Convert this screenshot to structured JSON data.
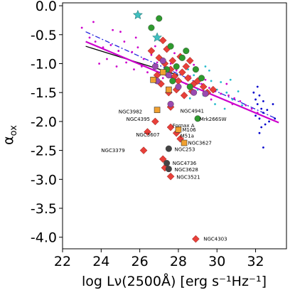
{
  "chart_data": {
    "type": "scatter",
    "xlabel": "log Lν(2500Å) [erg s⁻¹Hz⁻¹]",
    "ylabel": "αox",
    "xlim": [
      22,
      33.6
    ],
    "ylim": [
      -4.2,
      0.05
    ],
    "xticks": [
      22,
      24,
      26,
      28,
      30,
      32
    ],
    "yticks": [
      0.0,
      -0.5,
      -1.0,
      -1.5,
      -2.0,
      -2.5,
      -3.0,
      -3.5,
      -4.0
    ],
    "grid": false,
    "lines": [
      {
        "style": "solid",
        "color": "#000000",
        "points": [
          [
            23.2,
            -0.7
          ],
          [
            28.0,
            -1.2
          ]
        ]
      },
      {
        "style": "solid",
        "color": "#cc00cc",
        "points": [
          [
            23.2,
            -0.62
          ],
          [
            33.2,
            -2.02
          ]
        ]
      },
      {
        "style": "dashdot",
        "color": "#2222dd",
        "points": [
          [
            23.2,
            -0.45
          ],
          [
            33.0,
            -1.94
          ]
        ]
      }
    ],
    "series": [
      {
        "marker": "dot",
        "color": "#cc00cc",
        "points": [
          [
            23.4,
            -0.55
          ],
          [
            23.7,
            -0.62
          ],
          [
            24.1,
            -0.72
          ],
          [
            24.5,
            -0.68
          ],
          [
            24.9,
            -0.78
          ],
          [
            25.2,
            -0.62
          ],
          [
            25.6,
            -0.8
          ],
          [
            25.9,
            -0.72
          ],
          [
            26.2,
            -0.92
          ],
          [
            26.6,
            -0.85
          ],
          [
            26.9,
            -0.98
          ],
          [
            27.3,
            -1.05
          ],
          [
            27.6,
            -1.0
          ],
          [
            27.9,
            -1.12
          ],
          [
            28.2,
            -1.18
          ],
          [
            28.6,
            -1.22
          ],
          [
            28.9,
            -1.3
          ],
          [
            29.2,
            -1.35
          ],
          [
            29.6,
            -1.42
          ],
          [
            29.9,
            -1.48
          ],
          [
            30.2,
            -1.52
          ],
          [
            30.6,
            -1.55
          ],
          [
            30.9,
            -1.6
          ],
          [
            31.2,
            -1.65
          ],
          [
            31.5,
            -1.72
          ],
          [
            31.8,
            -1.78
          ],
          [
            32.1,
            -1.85
          ],
          [
            23.9,
            -1.0
          ],
          [
            24.3,
            -0.92
          ],
          [
            24.8,
            -1.05
          ],
          [
            25.3,
            -0.98
          ],
          [
            25.7,
            -1.1
          ],
          [
            26.1,
            -1.05
          ],
          [
            26.4,
            -1.15
          ],
          [
            23.0,
            -0.38
          ],
          [
            23.6,
            -0.28
          ],
          [
            25.0,
            -0.45
          ],
          [
            25.8,
            -0.55
          ],
          [
            27.2,
            -1.25
          ],
          [
            28.4,
            -1.35
          ],
          [
            29.4,
            -1.28
          ],
          [
            30.5,
            -1.35
          ],
          [
            24.6,
            -0.42
          ],
          [
            26.8,
            -0.7
          ],
          [
            27.8,
            -0.82
          ],
          [
            28.8,
            -1.02
          ],
          [
            29.7,
            -1.62
          ],
          [
            30.8,
            -1.7
          ]
        ]
      },
      {
        "marker": "dot",
        "color": "#22bbcc",
        "points": [
          [
            28.5,
            -1.1
          ],
          [
            28.8,
            -1.2
          ],
          [
            29.1,
            -1.25
          ],
          [
            29.4,
            -1.05
          ],
          [
            29.7,
            -1.3
          ],
          [
            30.0,
            -1.45
          ],
          [
            30.2,
            -1.32
          ],
          [
            30.5,
            -1.5
          ],
          [
            30.8,
            -1.62
          ],
          [
            31.1,
            -1.48
          ],
          [
            29.3,
            -1.55
          ],
          [
            29.9,
            -1.7
          ],
          [
            30.4,
            -1.78
          ],
          [
            31.3,
            -1.72
          ],
          [
            29.0,
            -1.45
          ],
          [
            30.7,
            -1.28
          ],
          [
            28.6,
            -1.6
          ],
          [
            29.6,
            -1.12
          ]
        ]
      },
      {
        "marker": "dot",
        "color": "#0000cc",
        "points": [
          [
            31.9,
            -1.5
          ],
          [
            32.0,
            -1.62
          ],
          [
            32.1,
            -1.7
          ],
          [
            32.2,
            -1.55
          ],
          [
            32.3,
            -1.78
          ],
          [
            32.4,
            -1.85
          ],
          [
            32.0,
            -1.9
          ],
          [
            32.2,
            -1.95
          ],
          [
            32.5,
            -2.05
          ],
          [
            32.3,
            -2.1
          ],
          [
            32.6,
            -1.8
          ],
          [
            32.1,
            -1.4
          ],
          [
            32.4,
            -1.65
          ],
          [
            32.7,
            -2.0
          ],
          [
            32.2,
            -2.2
          ],
          [
            32.4,
            -2.45
          ],
          [
            33.0,
            -1.95
          ],
          [
            32.9,
            -1.7
          ]
        ]
      },
      {
        "marker": "diamond",
        "color": "#e8403a",
        "points": [
          [
            26.6,
            -0.78
          ],
          [
            27.0,
            -0.9
          ],
          [
            27.3,
            -1.0
          ],
          [
            27.6,
            -1.1
          ],
          [
            27.8,
            -1.22
          ],
          [
            28.0,
            -1.3
          ],
          [
            28.2,
            -1.15
          ],
          [
            28.5,
            -1.25
          ],
          [
            28.8,
            -1.35
          ],
          [
            27.4,
            -0.75
          ],
          [
            27.7,
            -0.95
          ],
          [
            28.1,
            -0.88
          ],
          [
            28.4,
            -1.05
          ],
          [
            27.1,
            -1.35
          ],
          [
            27.5,
            -1.5
          ],
          [
            27.9,
            -1.45
          ],
          [
            28.3,
            -1.55
          ],
          [
            28.7,
            -1.48
          ],
          [
            29.0,
            -1.3
          ],
          [
            29.3,
            -1.4
          ],
          [
            26.9,
            -1.2
          ],
          [
            27.6,
            -1.75
          ],
          [
            26.8,
            -2.0
          ],
          [
            26.4,
            -2.18
          ],
          [
            26.2,
            -2.5
          ],
          [
            27.2,
            -2.65
          ],
          [
            27.3,
            -2.8
          ],
          [
            27.6,
            -2.1
          ],
          [
            27.9,
            -2.2
          ],
          [
            28.1,
            -2.3
          ],
          [
            27.6,
            -2.95
          ],
          [
            28.9,
            -4.03
          ],
          [
            27.2,
            -0.6
          ],
          [
            28.6,
            -0.95
          ],
          [
            29.5,
            -1.5
          ],
          [
            29.8,
            -1.45
          ]
        ]
      },
      {
        "marker": "circle",
        "color": "#2e9a2e",
        "points": [
          [
            27.0,
            -0.22
          ],
          [
            26.6,
            -0.38
          ],
          [
            27.6,
            -0.7
          ],
          [
            28.2,
            -0.9
          ],
          [
            28.9,
            -1.1
          ],
          [
            29.2,
            -1.25
          ],
          [
            28.6,
            -1.4
          ],
          [
            27.4,
            -1.1
          ],
          [
            27.9,
            -1.05
          ],
          [
            29.0,
            -1.95
          ],
          [
            28.4,
            -0.78
          ],
          [
            27.7,
            -1.3
          ]
        ]
      },
      {
        "marker": "circle",
        "color": "#9a4ab0",
        "points": [
          [
            26.8,
            -1.05
          ],
          [
            27.5,
            -1.2
          ],
          [
            28.0,
            -1.4
          ],
          [
            28.8,
            -1.5
          ],
          [
            27.2,
            -0.95
          ],
          [
            29.4,
            -1.52
          ],
          [
            26.9,
            -1.3
          ],
          [
            27.6,
            -1.7
          ]
        ]
      },
      {
        "marker": "circle",
        "color": "#444444",
        "points": [
          [
            27.5,
            -2.47
          ],
          [
            27.4,
            -2.72
          ],
          [
            27.5,
            -2.82
          ]
        ]
      },
      {
        "marker": "square",
        "color": "#f0a030",
        "points": [
          [
            26.7,
            -1.28
          ],
          [
            26.9,
            -1.8
          ],
          [
            28.0,
            -2.14
          ],
          [
            28.3,
            -2.37
          ],
          [
            27.5,
            -1.45
          ],
          [
            27.2,
            -1.15
          ]
        ]
      },
      {
        "marker": "star",
        "color": "#40c0c0",
        "points": [
          [
            25.9,
            -0.16
          ],
          [
            26.9,
            -0.55
          ]
        ]
      }
    ],
    "annotations": [
      {
        "text": "NGC3982",
        "x": 24.9,
        "y": -1.83
      },
      {
        "text": "NGC4941",
        "x": 28.1,
        "y": -1.82
      },
      {
        "text": "NGC4395",
        "x": 25.3,
        "y": -1.96
      },
      {
        "text": "Mrk266SW",
        "x": 29.1,
        "y": -1.96
      },
      {
        "text": "Fornax A",
        "x": 27.7,
        "y": -2.07
      },
      {
        "text": "M106",
        "x": 28.2,
        "y": -2.14
      },
      {
        "text": "NGC3607",
        "x": 25.8,
        "y": -2.23
      },
      {
        "text": "M51a",
        "x": 28.1,
        "y": -2.25
      },
      {
        "text": "NGC3627",
        "x": 28.5,
        "y": -2.37
      },
      {
        "text": "NGC3379",
        "x": 24.0,
        "y": -2.5
      },
      {
        "text": "NGC253",
        "x": 27.8,
        "y": -2.48
      },
      {
        "text": "NGC4736",
        "x": 27.7,
        "y": -2.72
      },
      {
        "text": "NGC3628",
        "x": 27.8,
        "y": -2.83
      },
      {
        "text": "NGC3521",
        "x": 27.9,
        "y": -2.96
      },
      {
        "text": "NGC4303",
        "x": 29.3,
        "y": -4.03
      }
    ]
  }
}
